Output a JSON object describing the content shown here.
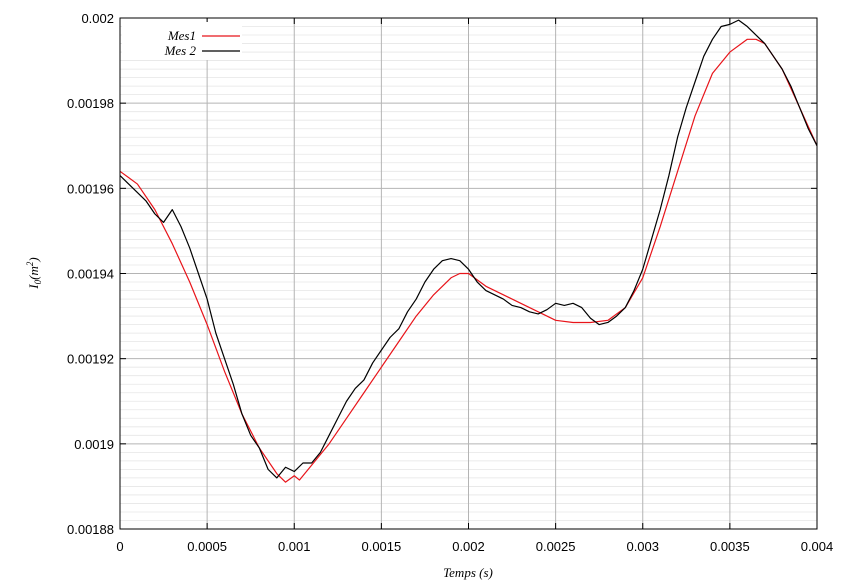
{
  "chart_data": {
    "type": "line",
    "xlabel": "Temps (s)",
    "ylabel": {
      "base": "I",
      "sub": "0",
      "paren_open": "(",
      "unit_base": "m",
      "unit_sup": "2",
      "paren_close": ")"
    },
    "xlim": [
      0,
      0.004
    ],
    "ylim": [
      0.00188,
      0.002
    ],
    "grid": true,
    "legend_position": "top-left",
    "x_ticks": [
      {
        "value": 0,
        "label": "0"
      },
      {
        "value": 0.0005,
        "label": "0.0005"
      },
      {
        "value": 0.001,
        "label": "0.001"
      },
      {
        "value": 0.0015,
        "label": "0.0015"
      },
      {
        "value": 0.002,
        "label": "0.002"
      },
      {
        "value": 0.0025,
        "label": "0.0025"
      },
      {
        "value": 0.003,
        "label": "0.003"
      },
      {
        "value": 0.0035,
        "label": "0.0035"
      },
      {
        "value": 0.004,
        "label": "0.004"
      }
    ],
    "y_ticks": [
      {
        "value": 0.00188,
        "label": "0.00188"
      },
      {
        "value": 0.0019,
        "label": "0.0019"
      },
      {
        "value": 0.00192,
        "label": "0.00192"
      },
      {
        "value": 0.00194,
        "label": "0.00194"
      },
      {
        "value": 0.00196,
        "label": "0.00196"
      },
      {
        "value": 0.00198,
        "label": "0.00198"
      },
      {
        "value": 0.002,
        "label": "0.002"
      }
    ],
    "series": [
      {
        "name": "Mes1",
        "color": "#e8141a",
        "x": [
          0,
          0.0001,
          0.0002,
          0.0003,
          0.0004,
          0.0005,
          0.0006,
          0.0007,
          0.0008,
          0.0009,
          0.00095,
          0.001,
          0.00103,
          0.0011,
          0.0012,
          0.0013,
          0.0014,
          0.0015,
          0.0016,
          0.0017,
          0.0018,
          0.0019,
          0.00195,
          0.002,
          0.0021,
          0.0022,
          0.0023,
          0.0024,
          0.0025,
          0.0026,
          0.0027,
          0.0028,
          0.0029,
          0.003,
          0.0031,
          0.0032,
          0.0033,
          0.0034,
          0.0035,
          0.0036,
          0.00365,
          0.0037,
          0.0038,
          0.0039,
          0.004
        ],
        "y": [
          0.001964,
          0.001961,
          0.001955,
          0.001947,
          0.001938,
          0.001928,
          0.001917,
          0.001907,
          0.001899,
          0.001893,
          0.001891,
          0.0018925,
          0.0018915,
          0.001895,
          0.0019,
          0.001906,
          0.001912,
          0.001918,
          0.001924,
          0.00193,
          0.001935,
          0.001939,
          0.00194,
          0.00194,
          0.001937,
          0.001935,
          0.001933,
          0.001931,
          0.001929,
          0.0019285,
          0.0019285,
          0.001929,
          0.001932,
          0.001939,
          0.001951,
          0.001964,
          0.001977,
          0.001987,
          0.001992,
          0.001995,
          0.001995,
          0.001994,
          0.001988,
          0.001979,
          0.00197
        ]
      },
      {
        "name": "Mes 2",
        "color": "#000000",
        "x": [
          0,
          5e-05,
          0.0001,
          0.00015,
          0.0002,
          0.00025,
          0.0003,
          0.00035,
          0.0004,
          0.00045,
          0.0005,
          0.00055,
          0.0006,
          0.00065,
          0.0007,
          0.00075,
          0.0008,
          0.00085,
          0.0009,
          0.00095,
          0.001,
          0.00105,
          0.0011,
          0.00115,
          0.0012,
          0.00125,
          0.0013,
          0.00135,
          0.0014,
          0.00145,
          0.0015,
          0.00155,
          0.0016,
          0.00165,
          0.0017,
          0.00175,
          0.0018,
          0.00185,
          0.0019,
          0.00195,
          0.002,
          0.00205,
          0.0021,
          0.00215,
          0.0022,
          0.00225,
          0.0023,
          0.00235,
          0.0024,
          0.00245,
          0.0025,
          0.00255,
          0.0026,
          0.00265,
          0.0027,
          0.00275,
          0.0028,
          0.00285,
          0.0029,
          0.00295,
          0.003,
          0.00305,
          0.0031,
          0.00315,
          0.0032,
          0.00325,
          0.0033,
          0.00335,
          0.0034,
          0.00345,
          0.0035,
          0.00355,
          0.0036,
          0.00365,
          0.0037,
          0.00375,
          0.0038,
          0.00385,
          0.0039,
          0.00395,
          0.004
        ],
        "y": [
          0.001963,
          0.001961,
          0.001959,
          0.001957,
          0.001954,
          0.001952,
          0.001955,
          0.001951,
          0.001946,
          0.00194,
          0.001934,
          0.001926,
          0.00192,
          0.001914,
          0.001907,
          0.001902,
          0.001899,
          0.001894,
          0.001892,
          0.0018945,
          0.0018935,
          0.0018955,
          0.0018955,
          0.001898,
          0.001902,
          0.001906,
          0.00191,
          0.001913,
          0.001915,
          0.001919,
          0.001922,
          0.001925,
          0.001927,
          0.001931,
          0.001934,
          0.001938,
          0.001941,
          0.001943,
          0.0019435,
          0.001943,
          0.001941,
          0.001938,
          0.001936,
          0.001935,
          0.001934,
          0.0019325,
          0.001932,
          0.001931,
          0.0019305,
          0.0019315,
          0.001933,
          0.0019325,
          0.001933,
          0.001932,
          0.0019295,
          0.001928,
          0.0019285,
          0.00193,
          0.001932,
          0.001936,
          0.001941,
          0.001948,
          0.001955,
          0.001963,
          0.001972,
          0.001979,
          0.001985,
          0.001991,
          0.001995,
          0.001998,
          0.0019985,
          0.0019995,
          0.001998,
          0.001996,
          0.001994,
          0.001991,
          0.001988,
          0.001984,
          0.001979,
          0.001974,
          0.00197
        ]
      }
    ]
  }
}
